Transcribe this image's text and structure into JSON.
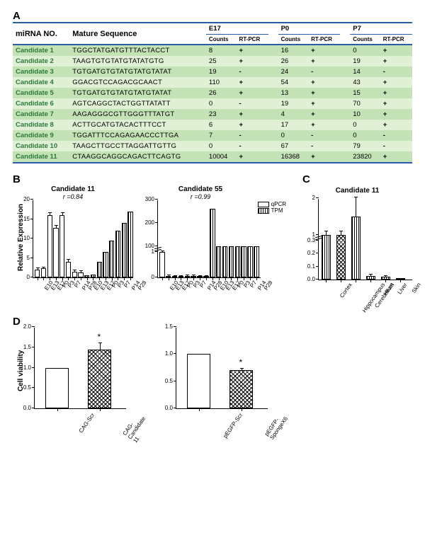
{
  "panelA": {
    "label": "A",
    "header": {
      "mirna": "miRNA NO.",
      "seq": "Mature  Sequence",
      "groups": [
        {
          "name": "E17",
          "sub": [
            "Counts",
            "RT-PCR"
          ]
        },
        {
          "name": "P0",
          "sub": [
            "Counts",
            "RT-PCR"
          ]
        },
        {
          "name": "P7",
          "sub": [
            "Counts",
            "RT-PCR"
          ]
        }
      ]
    },
    "rows": [
      {
        "cand": "Candidate 1",
        "seq": "TGGCTATGATGTTTACTACCT",
        "v": [
          "8",
          "+",
          "16",
          "+",
          "0",
          "+"
        ],
        "shade": "dark"
      },
      {
        "cand": "Candidate 2",
        "seq": "TAAGTGTGTATGTATATGTG",
        "v": [
          "25",
          "+",
          "26",
          "+",
          "19",
          "+"
        ],
        "shade": "light"
      },
      {
        "cand": "Candidate 3",
        "seq": "TGTGATGTGTATGTATGTATAT",
        "v": [
          "19",
          "-",
          "24",
          "-",
          "14",
          "-"
        ],
        "shade": "dark"
      },
      {
        "cand": "Candidate 4",
        "seq": "GGACGTCCAGACGCAACT",
        "v": [
          "110",
          "+",
          "54",
          "+",
          "43",
          "+"
        ],
        "shade": "light"
      },
      {
        "cand": "Candidate 5",
        "seq": "TGTGATGTGTATGTATGTATAT",
        "v": [
          "26",
          "+",
          "13",
          "+",
          "15",
          "+"
        ],
        "shade": "dark"
      },
      {
        "cand": "Candidate 6",
        "seq": "AGTCAGGCTACTGGTTATATT",
        "v": [
          "0",
          "-",
          "19",
          "+",
          "70",
          "+"
        ],
        "shade": "light"
      },
      {
        "cand": "Candidate 7",
        "seq": "AAGAGGGCGTTGGGTTTATGT",
        "v": [
          "23",
          "+",
          "4",
          "+",
          "10",
          "+"
        ],
        "shade": "dark"
      },
      {
        "cand": "Candidate 8",
        "seq": "ACTTGCATGTACACTTTCCT",
        "v": [
          "6",
          "+",
          "17",
          "+",
          "0",
          "+"
        ],
        "shade": "light"
      },
      {
        "cand": "Candidate 9",
        "seq": "TGGATTTCCAGAGAACCCTTGA",
        "v": [
          "7",
          "-",
          "0",
          "-",
          "0",
          "-"
        ],
        "shade": "dark"
      },
      {
        "cand": "Candidate 10",
        "seq": "TAAGCTTGCCTTAGGATTGTTG",
        "v": [
          "0",
          "-",
          "67",
          "-",
          "79",
          "-"
        ],
        "shade": "light"
      },
      {
        "cand": "Candidate 11",
        "seq": "CTAAGGCAGGCAGACTTCAGTG",
        "v": [
          "10004",
          "+",
          "16368",
          "+",
          "23820",
          "+"
        ],
        "shade": "dark"
      }
    ]
  },
  "panelB": {
    "label": "B",
    "chart11": {
      "type": "bar",
      "title": "Candidate 11",
      "subtitle": "r =0.84",
      "ylabel": "Relative Expression",
      "yticks": [
        0,
        5,
        10,
        15,
        20
      ],
      "ylim": [
        0,
        20
      ],
      "categories": [
        "E10",
        "E13",
        "E17",
        "P0",
        "P3",
        "P7",
        "P14",
        "P28"
      ],
      "qpcr": [
        2.0,
        2.3,
        16.0,
        12.8,
        16.0,
        4.0,
        1.5,
        1.3
      ],
      "qpcr_err": [
        0.3,
        0.3,
        0.6,
        0.4,
        0.5,
        0.5,
        0.3,
        0.3
      ],
      "tpm": [
        0.5,
        0.8,
        4.0,
        6.5,
        9.5,
        12.0,
        14.0,
        17.0
      ],
      "bar_color_open": "#ffffff",
      "border_color": "#000000"
    },
    "chart55": {
      "type": "bar",
      "title": "Candidate 55",
      "subtitle": "r =0.99",
      "yticks_lower": [
        0,
        1
      ],
      "yticks_upper": [
        100,
        200,
        300
      ],
      "categories": [
        "E10",
        "E13",
        "E17",
        "P0",
        "P3",
        "P7",
        "P14",
        "P28"
      ],
      "qpcr": [
        1.0,
        0.06,
        0.04,
        0.04,
        0.05,
        0.05,
        0.04,
        0.04
      ],
      "qpcr_err": [
        0.03,
        0.02,
        0.02,
        0.02,
        0.02,
        0.02,
        0.02,
        0.02
      ],
      "tpm": [
        260,
        4,
        3,
        3,
        4,
        4,
        3,
        3
      ],
      "legend": [
        "qPCR",
        "TPM"
      ]
    }
  },
  "panelC": {
    "label": "C",
    "chart": {
      "title": "Candidate 11",
      "yticks_lower": [
        0.0,
        0.1,
        0.2,
        0.3
      ],
      "yticks_upper": [
        1,
        2
      ],
      "categories": [
        "Cortex",
        "Hippocampus",
        "Cerebellum",
        "Heart",
        "Liver",
        "Skin"
      ],
      "values": [
        1.0,
        1.0,
        1.5,
        0.03,
        0.02,
        0.005
      ],
      "errs": [
        0.03,
        0.03,
        0.15,
        0.01,
        0.01,
        0.003
      ],
      "patterns": [
        "hatch",
        "cross",
        "hatch",
        "hatch",
        "hatch",
        "hatch"
      ]
    }
  },
  "panelD": {
    "label": "D",
    "ylabel": "Cell viability",
    "left": {
      "yticks": [
        0.0,
        0.5,
        1.0,
        1.5,
        2.0
      ],
      "categories": [
        "CAG-Scr",
        "CAG-Candidate 11"
      ],
      "values": [
        1.0,
        1.45
      ],
      "errs": [
        0.0,
        0.15
      ],
      "star_idx": 1
    },
    "right": {
      "yticks": [
        0.0,
        0.5,
        1.0,
        1.5
      ],
      "categories": [
        "pEGFP-Scr",
        "pEGFP-SpongeX6"
      ],
      "values": [
        1.0,
        0.7
      ],
      "errs": [
        0.0,
        0.03
      ],
      "star_idx": 1
    }
  },
  "colors": {
    "rule": "#2a5caa",
    "row_dark": "#c3e2b5",
    "row_light": "#e0f0d5",
    "cand": "#2b7a3a"
  }
}
